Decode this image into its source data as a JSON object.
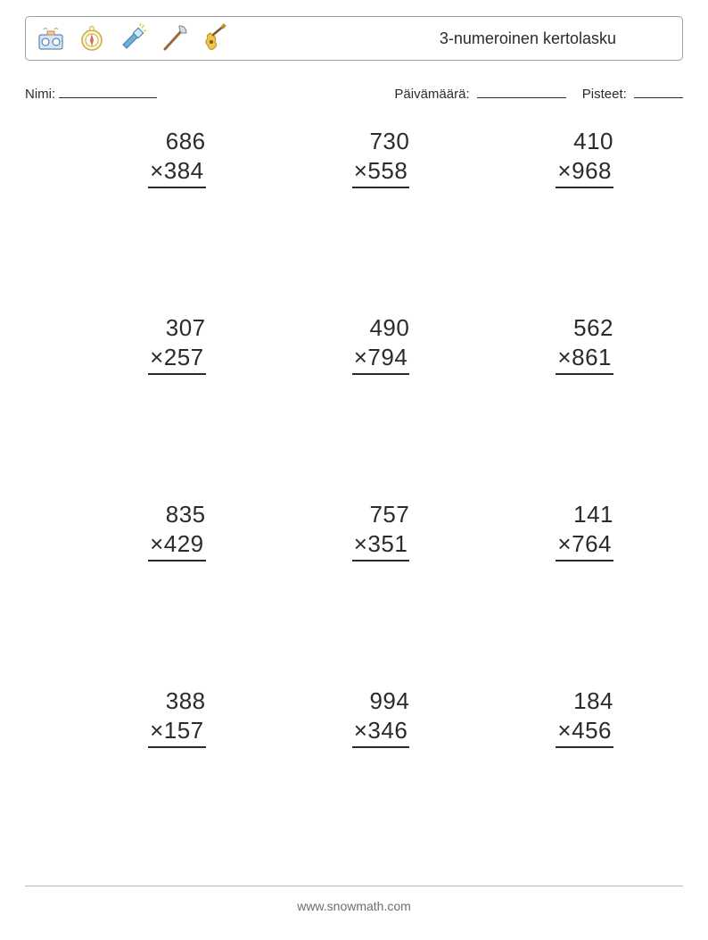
{
  "header": {
    "title": "3-numeroinen kertolasku",
    "icons": [
      "boombox-icon",
      "compass-icon",
      "flashlight-icon",
      "axe-icon",
      "guitar-icon"
    ]
  },
  "meta": {
    "name_label": "Nimi:",
    "date_label": "Päivämäärä:",
    "score_label": "Pisteet:"
  },
  "colors": {
    "text": "#2b2b2b",
    "border": "#9aa0a6",
    "rule": "#b9b9b9",
    "background": "#ffffff",
    "footer_text": "#6d6d6d"
  },
  "font": {
    "title_size": 18,
    "meta_size": 15,
    "problem_size": 26,
    "footer_size": 14
  },
  "layout": {
    "grid_cols": 3,
    "grid_rows": 4,
    "multiply_symbol": "×"
  },
  "problems": [
    {
      "a": "686",
      "b": "384"
    },
    {
      "a": "730",
      "b": "558"
    },
    {
      "a": "410",
      "b": "968"
    },
    {
      "a": "307",
      "b": "257"
    },
    {
      "a": "490",
      "b": "794"
    },
    {
      "a": "562",
      "b": "861"
    },
    {
      "a": "835",
      "b": "429"
    },
    {
      "a": "757",
      "b": "351"
    },
    {
      "a": "141",
      "b": "764"
    },
    {
      "a": "388",
      "b": "157"
    },
    {
      "a": "994",
      "b": "346"
    },
    {
      "a": "184",
      "b": "456"
    }
  ],
  "footer": {
    "text": "www.snowmath.com"
  }
}
